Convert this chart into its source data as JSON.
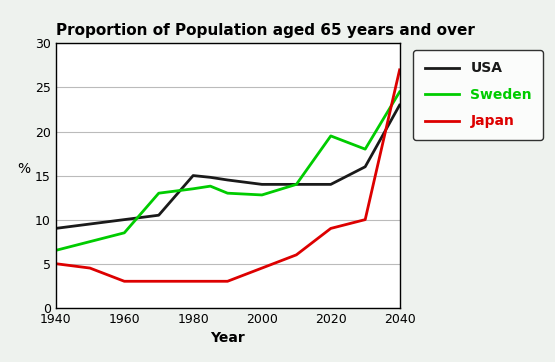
{
  "title": "Proportion of Population aged 65 years and over",
  "xlabel": "Year",
  "ylabel": "%",
  "years": [
    1940,
    1950,
    1960,
    1970,
    1980,
    1985,
    1990,
    2000,
    2010,
    2020,
    2030,
    2040
  ],
  "usa": [
    9,
    9.5,
    10,
    10.5,
    15,
    14.8,
    14.5,
    14,
    14,
    14,
    16,
    23
  ],
  "sweden": [
    6.5,
    7.5,
    8.5,
    13,
    13.5,
    13.8,
    13,
    12.8,
    14,
    19.5,
    18,
    24.5
  ],
  "japan": [
    5,
    4.5,
    3,
    3,
    3,
    3,
    3,
    4.5,
    6,
    9,
    10,
    27
  ],
  "usa_color": "#1a1a1a",
  "sweden_color": "#00cc00",
  "japan_color": "#dd0000",
  "ylim": [
    0,
    30
  ],
  "xlim": [
    1940,
    2040
  ],
  "xticks": [
    1940,
    1960,
    1980,
    2000,
    2020,
    2040
  ],
  "yticks": [
    0,
    5,
    10,
    15,
    20,
    25,
    30
  ],
  "bg_color": "#eef2ee",
  "plot_bg": "#ffffff",
  "linewidth": 2.0,
  "title_fontsize": 11,
  "axis_fontsize": 10,
  "tick_fontsize": 9,
  "legend_fontsize": 10
}
